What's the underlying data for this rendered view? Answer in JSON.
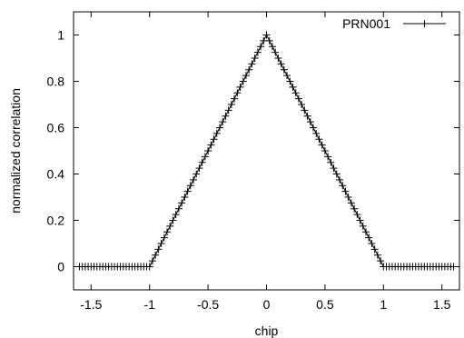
{
  "chart_data": {
    "type": "line",
    "title": "",
    "xlabel": "chip",
    "ylabel": "normalized correlation",
    "xlim": [
      -1.65,
      1.65
    ],
    "ylim": [
      -0.1,
      1.1
    ],
    "xticks": [
      -1.5,
      -1,
      -0.5,
      0,
      0.5,
      1,
      1.5
    ],
    "xtick_labels": [
      "-1.5",
      "-1",
      "-0.5",
      "0",
      "0.5",
      "1",
      "1.5"
    ],
    "yticks": [
      0,
      0.2,
      0.4,
      0.6,
      0.8,
      1
    ],
    "ytick_labels": [
      "0",
      "0.2",
      "0.4",
      "0.6",
      "0.8",
      "1"
    ],
    "grid": false,
    "legend_position": "top-right",
    "series": [
      {
        "name": "PRN001",
        "marker": "plus",
        "color": "#000000",
        "x": [
          -1.6,
          -1.575,
          -1.55,
          -1.525,
          -1.5,
          -1.475,
          -1.45,
          -1.425,
          -1.4,
          -1.375,
          -1.35,
          -1.325,
          -1.3,
          -1.275,
          -1.25,
          -1.225,
          -1.2,
          -1.175,
          -1.15,
          -1.125,
          -1.1,
          -1.075,
          -1.05,
          -1.025,
          -1.0,
          -0.975,
          -0.95,
          -0.925,
          -0.9,
          -0.875,
          -0.85,
          -0.825,
          -0.8,
          -0.775,
          -0.75,
          -0.725,
          -0.7,
          -0.675,
          -0.65,
          -0.625,
          -0.6,
          -0.575,
          -0.55,
          -0.525,
          -0.5,
          -0.475,
          -0.45,
          -0.425,
          -0.4,
          -0.375,
          -0.35,
          -0.325,
          -0.3,
          -0.275,
          -0.25,
          -0.225,
          -0.2,
          -0.175,
          -0.15,
          -0.125,
          -0.1,
          -0.075,
          -0.05,
          -0.025,
          0.0,
          0.025,
          0.05,
          0.075,
          0.1,
          0.125,
          0.15,
          0.175,
          0.2,
          0.225,
          0.25,
          0.275,
          0.3,
          0.325,
          0.35,
          0.375,
          0.4,
          0.425,
          0.45,
          0.475,
          0.5,
          0.525,
          0.55,
          0.575,
          0.6,
          0.625,
          0.65,
          0.675,
          0.7,
          0.725,
          0.75,
          0.775,
          0.8,
          0.825,
          0.85,
          0.875,
          0.9,
          0.925,
          0.95,
          0.975,
          1.0,
          1.025,
          1.05,
          1.075,
          1.1,
          1.125,
          1.15,
          1.175,
          1.2,
          1.225,
          1.25,
          1.275,
          1.3,
          1.325,
          1.35,
          1.375,
          1.4,
          1.425,
          1.45,
          1.475,
          1.5,
          1.525,
          1.55,
          1.575,
          1.6
        ],
        "y": [
          0,
          0,
          0,
          0,
          0,
          0,
          0,
          0,
          0,
          0,
          0,
          0,
          0,
          0,
          0,
          0,
          0,
          0,
          0,
          0,
          0,
          0,
          0,
          0,
          0,
          0.025,
          0.05,
          0.075,
          0.1,
          0.125,
          0.15,
          0.175,
          0.2,
          0.225,
          0.25,
          0.275,
          0.3,
          0.325,
          0.35,
          0.375,
          0.4,
          0.425,
          0.45,
          0.475,
          0.5,
          0.525,
          0.55,
          0.575,
          0.6,
          0.625,
          0.65,
          0.675,
          0.7,
          0.725,
          0.75,
          0.775,
          0.8,
          0.825,
          0.85,
          0.875,
          0.9,
          0.925,
          0.95,
          0.975,
          1.0,
          0.975,
          0.95,
          0.925,
          0.9,
          0.875,
          0.85,
          0.825,
          0.8,
          0.775,
          0.75,
          0.725,
          0.7,
          0.675,
          0.65,
          0.625,
          0.6,
          0.575,
          0.55,
          0.525,
          0.5,
          0.475,
          0.45,
          0.425,
          0.4,
          0.375,
          0.35,
          0.325,
          0.3,
          0.275,
          0.25,
          0.225,
          0.2,
          0.175,
          0.15,
          0.125,
          0.1,
          0.075,
          0.05,
          0.025,
          0,
          0,
          0,
          0,
          0,
          0,
          0,
          0,
          0,
          0,
          0,
          0,
          0,
          0,
          0,
          0,
          0,
          0,
          0,
          0,
          0,
          0,
          0,
          0,
          0
        ]
      }
    ]
  }
}
